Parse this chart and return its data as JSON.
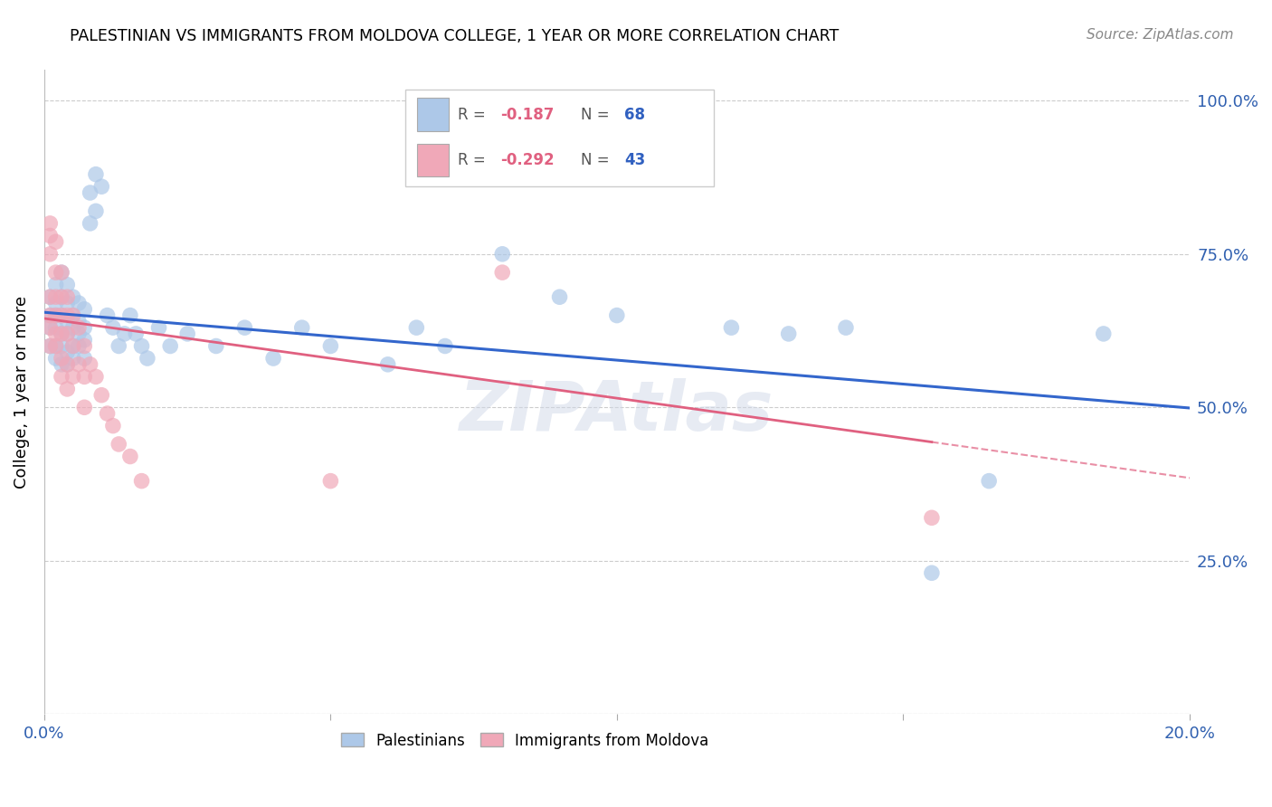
{
  "title": "PALESTINIAN VS IMMIGRANTS FROM MOLDOVA COLLEGE, 1 YEAR OR MORE CORRELATION CHART",
  "source": "Source: ZipAtlas.com",
  "ylabel": "College, 1 year or more",
  "blue_label": "Palestinians",
  "pink_label": "Immigrants from Moldova",
  "blue_R": -0.187,
  "blue_N": 68,
  "pink_R": -0.292,
  "pink_N": 43,
  "xlim": [
    0.0,
    0.2
  ],
  "ylim": [
    0.0,
    1.05
  ],
  "yticks": [
    0.0,
    0.25,
    0.5,
    0.75,
    1.0
  ],
  "ytick_labels": [
    "",
    "25.0%",
    "50.0%",
    "75.0%",
    "100.0%"
  ],
  "xticks": [
    0.0,
    0.05,
    0.1,
    0.15,
    0.2
  ],
  "xtick_labels": [
    "0.0%",
    "",
    "",
    "",
    "20.0%"
  ],
  "blue_color": "#adc8e8",
  "pink_color": "#f0a8b8",
  "blue_line_color": "#3366cc",
  "pink_line_color": "#e06080",
  "watermark": "ZIPAtlas",
  "blue_scatter": [
    [
      0.001,
      0.68
    ],
    [
      0.001,
      0.65
    ],
    [
      0.001,
      0.63
    ],
    [
      0.001,
      0.6
    ],
    [
      0.002,
      0.7
    ],
    [
      0.002,
      0.67
    ],
    [
      0.002,
      0.65
    ],
    [
      0.002,
      0.63
    ],
    [
      0.002,
      0.6
    ],
    [
      0.002,
      0.58
    ],
    [
      0.003,
      0.72
    ],
    [
      0.003,
      0.68
    ],
    [
      0.003,
      0.65
    ],
    [
      0.003,
      0.62
    ],
    [
      0.003,
      0.6
    ],
    [
      0.003,
      0.57
    ],
    [
      0.004,
      0.7
    ],
    [
      0.004,
      0.67
    ],
    [
      0.004,
      0.64
    ],
    [
      0.004,
      0.62
    ],
    [
      0.004,
      0.59
    ],
    [
      0.004,
      0.57
    ],
    [
      0.005,
      0.68
    ],
    [
      0.005,
      0.65
    ],
    [
      0.005,
      0.63
    ],
    [
      0.005,
      0.6
    ],
    [
      0.005,
      0.58
    ],
    [
      0.006,
      0.67
    ],
    [
      0.006,
      0.64
    ],
    [
      0.006,
      0.62
    ],
    [
      0.006,
      0.6
    ],
    [
      0.007,
      0.66
    ],
    [
      0.007,
      0.63
    ],
    [
      0.007,
      0.61
    ],
    [
      0.007,
      0.58
    ],
    [
      0.008,
      0.8
    ],
    [
      0.008,
      0.85
    ],
    [
      0.009,
      0.82
    ],
    [
      0.009,
      0.88
    ],
    [
      0.01,
      0.86
    ],
    [
      0.011,
      0.65
    ],
    [
      0.012,
      0.63
    ],
    [
      0.013,
      0.6
    ],
    [
      0.014,
      0.62
    ],
    [
      0.015,
      0.65
    ],
    [
      0.016,
      0.62
    ],
    [
      0.017,
      0.6
    ],
    [
      0.018,
      0.58
    ],
    [
      0.02,
      0.63
    ],
    [
      0.022,
      0.6
    ],
    [
      0.025,
      0.62
    ],
    [
      0.03,
      0.6
    ],
    [
      0.035,
      0.63
    ],
    [
      0.04,
      0.58
    ],
    [
      0.045,
      0.63
    ],
    [
      0.05,
      0.6
    ],
    [
      0.06,
      0.57
    ],
    [
      0.065,
      0.63
    ],
    [
      0.07,
      0.6
    ],
    [
      0.08,
      0.75
    ],
    [
      0.09,
      0.68
    ],
    [
      0.1,
      0.65
    ],
    [
      0.12,
      0.63
    ],
    [
      0.13,
      0.62
    ],
    [
      0.14,
      0.63
    ],
    [
      0.155,
      0.23
    ],
    [
      0.165,
      0.38
    ],
    [
      0.185,
      0.62
    ]
  ],
  "pink_scatter": [
    [
      0.001,
      0.8
    ],
    [
      0.001,
      0.78
    ],
    [
      0.001,
      0.75
    ],
    [
      0.001,
      0.68
    ],
    [
      0.001,
      0.65
    ],
    [
      0.001,
      0.63
    ],
    [
      0.001,
      0.6
    ],
    [
      0.002,
      0.77
    ],
    [
      0.002,
      0.72
    ],
    [
      0.002,
      0.68
    ],
    [
      0.002,
      0.65
    ],
    [
      0.002,
      0.62
    ],
    [
      0.002,
      0.6
    ],
    [
      0.003,
      0.72
    ],
    [
      0.003,
      0.68
    ],
    [
      0.003,
      0.65
    ],
    [
      0.003,
      0.62
    ],
    [
      0.003,
      0.58
    ],
    [
      0.003,
      0.55
    ],
    [
      0.004,
      0.68
    ],
    [
      0.004,
      0.65
    ],
    [
      0.004,
      0.62
    ],
    [
      0.004,
      0.57
    ],
    [
      0.004,
      0.53
    ],
    [
      0.005,
      0.65
    ],
    [
      0.005,
      0.6
    ],
    [
      0.005,
      0.55
    ],
    [
      0.006,
      0.63
    ],
    [
      0.006,
      0.57
    ],
    [
      0.007,
      0.6
    ],
    [
      0.007,
      0.55
    ],
    [
      0.007,
      0.5
    ],
    [
      0.008,
      0.57
    ],
    [
      0.009,
      0.55
    ],
    [
      0.01,
      0.52
    ],
    [
      0.011,
      0.49
    ],
    [
      0.012,
      0.47
    ],
    [
      0.013,
      0.44
    ],
    [
      0.015,
      0.42
    ],
    [
      0.017,
      0.38
    ],
    [
      0.05,
      0.38
    ],
    [
      0.08,
      0.72
    ],
    [
      0.155,
      0.32
    ]
  ]
}
